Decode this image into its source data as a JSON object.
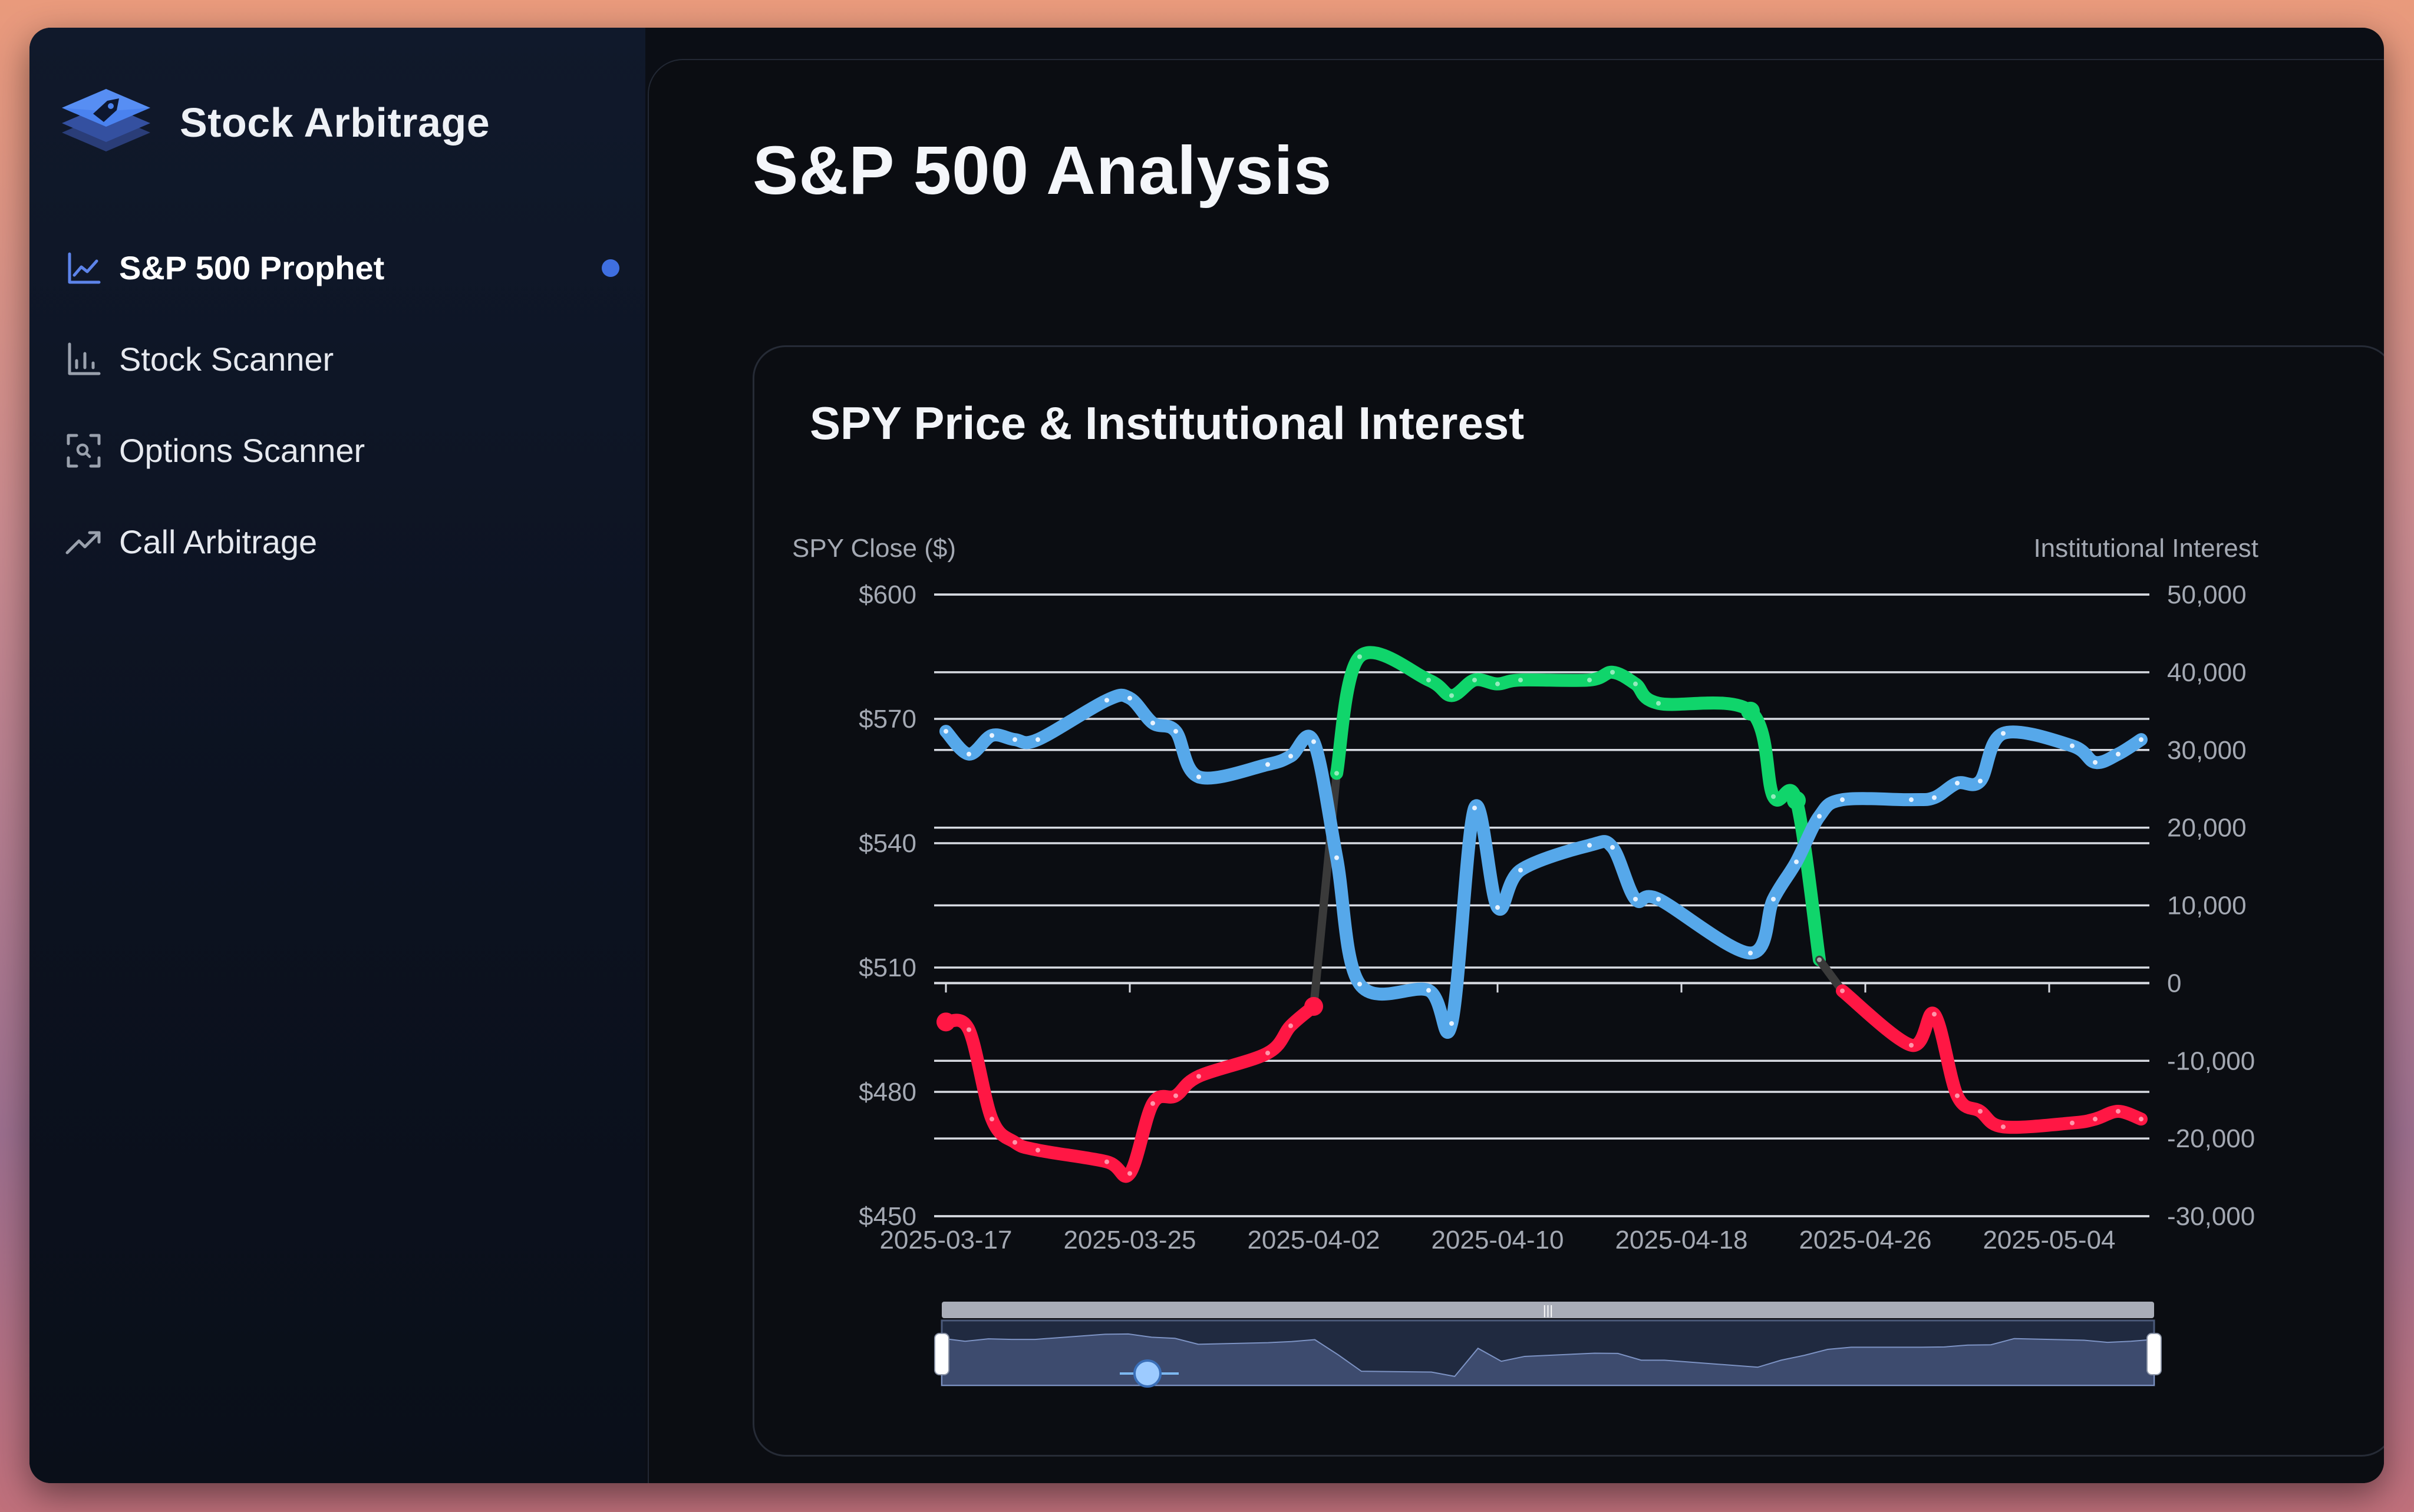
{
  "app": {
    "name": "Stock Arbitrage"
  },
  "sidebar": {
    "items": [
      {
        "label": "S&P 500 Prophet",
        "icon": "line-chart-icon",
        "active": true
      },
      {
        "label": "Stock Scanner",
        "icon": "bar-chart-icon",
        "active": false
      },
      {
        "label": "Options Scanner",
        "icon": "scan-icon",
        "active": false
      },
      {
        "label": "Call Arbitrage",
        "icon": "trending-up-icon",
        "active": false
      }
    ]
  },
  "page": {
    "title": "S&P 500 Analysis"
  },
  "colors": {
    "accent": "#3f6fe0",
    "price_line": "#56a8ea",
    "interest_positive": "#10d56b",
    "interest_negative": "#ff1744",
    "interest_neutral": "#3a3a3a"
  },
  "chart_data": {
    "type": "line",
    "title": "SPY Price & Institutional Interest",
    "y_left_label": "SPY Close ($)",
    "y_right_label": "Institutional Interest",
    "y_left_ticks": [
      "$600",
      "$570",
      "$540",
      "$510",
      "$480",
      "$450"
    ],
    "y_right_ticks": [
      "50,000",
      "40,000",
      "30,000",
      "20,000",
      "10,000",
      "0",
      "-10,000",
      "-20,000",
      "-30,000"
    ],
    "x_ticks": [
      "2025-03-17",
      "2025-03-25",
      "2025-04-02",
      "2025-04-10",
      "2025-04-18",
      "2025-04-26",
      "2025-05-04"
    ],
    "y_left_range": [
      450,
      600
    ],
    "y_right_range": [
      -30000,
      50000
    ],
    "grid": true,
    "series": [
      {
        "name": "SPY Close",
        "axis": "left",
        "points": [
          [
            "2025-03-17",
            567
          ],
          [
            "2025-03-18",
            561.5
          ],
          [
            "2025-03-19",
            566
          ],
          [
            "2025-03-20",
            565
          ],
          [
            "2025-03-21",
            565
          ],
          [
            "2025-03-24",
            574.5
          ],
          [
            "2025-03-25",
            575
          ],
          [
            "2025-03-26",
            569
          ],
          [
            "2025-03-27",
            567
          ],
          [
            "2025-03-28",
            556
          ],
          [
            "2025-03-31",
            559
          ],
          [
            "2025-04-01",
            561
          ],
          [
            "2025-04-02",
            564.5
          ],
          [
            "2025-04-03",
            536.5
          ],
          [
            "2025-04-04",
            506
          ],
          [
            "2025-04-07",
            504.5
          ],
          [
            "2025-04-08",
            496.5
          ],
          [
            "2025-04-09",
            548.5
          ],
          [
            "2025-04-10",
            524.5
          ],
          [
            "2025-04-11",
            533.5
          ],
          [
            "2025-04-14",
            539.5
          ],
          [
            "2025-04-15",
            539
          ],
          [
            "2025-04-16",
            526.5
          ],
          [
            "2025-04-17",
            526.5
          ],
          [
            "2025-04-21",
            513.5
          ],
          [
            "2025-04-22",
            526.5
          ],
          [
            "2025-04-23",
            535.5
          ],
          [
            "2025-04-24",
            546.5
          ],
          [
            "2025-04-25",
            550.5
          ],
          [
            "2025-04-28",
            550.5
          ],
          [
            "2025-04-29",
            551
          ],
          [
            "2025-04-30",
            554.5
          ],
          [
            "2025-05-01",
            555
          ],
          [
            "2025-05-02",
            566.5
          ],
          [
            "2025-05-05",
            563.5
          ],
          [
            "2025-05-06",
            559.5
          ],
          [
            "2025-05-07",
            561.5
          ],
          [
            "2025-05-08",
            565
          ]
        ]
      },
      {
        "name": "Institutional Interest",
        "axis": "right",
        "points": [
          [
            "2025-03-17",
            -5000
          ],
          [
            "2025-03-18",
            -6000
          ],
          [
            "2025-03-19",
            -17500
          ],
          [
            "2025-03-20",
            -20500
          ],
          [
            "2025-03-21",
            -21500
          ],
          [
            "2025-03-24",
            -23000
          ],
          [
            "2025-03-25",
            -24500
          ],
          [
            "2025-03-26",
            -15500
          ],
          [
            "2025-03-27",
            -14500
          ],
          [
            "2025-03-28",
            -12000
          ],
          [
            "2025-03-31",
            -9000
          ],
          [
            "2025-04-01",
            -5500
          ],
          [
            "2025-04-02",
            -3000
          ],
          [
            "2025-04-03",
            27000
          ],
          [
            "2025-04-04",
            42000
          ],
          [
            "2025-04-07",
            39000
          ],
          [
            "2025-04-08",
            37000
          ],
          [
            "2025-04-09",
            39000
          ],
          [
            "2025-04-10",
            38500
          ],
          [
            "2025-04-11",
            39000
          ],
          [
            "2025-04-14",
            39000
          ],
          [
            "2025-04-15",
            40000
          ],
          [
            "2025-04-16",
            38500
          ],
          [
            "2025-04-17",
            36000
          ],
          [
            "2025-04-21",
            35000
          ],
          [
            "2025-04-22",
            24000
          ],
          [
            "2025-04-23",
            23500
          ],
          [
            "2025-04-24",
            3000
          ],
          [
            "2025-04-25",
            -1000
          ],
          [
            "2025-04-28",
            -8000
          ],
          [
            "2025-04-29",
            -4000
          ],
          [
            "2025-04-30",
            -14500
          ],
          [
            "2025-05-01",
            -16500
          ],
          [
            "2025-05-02",
            -18500
          ],
          [
            "2025-05-05",
            -18000
          ],
          [
            "2025-05-06",
            -17500
          ],
          [
            "2025-05-07",
            -16500
          ],
          [
            "2025-05-08",
            -17500
          ]
        ]
      }
    ],
    "data_zoom": {
      "start_percent": 0,
      "end_percent": 100
    }
  }
}
